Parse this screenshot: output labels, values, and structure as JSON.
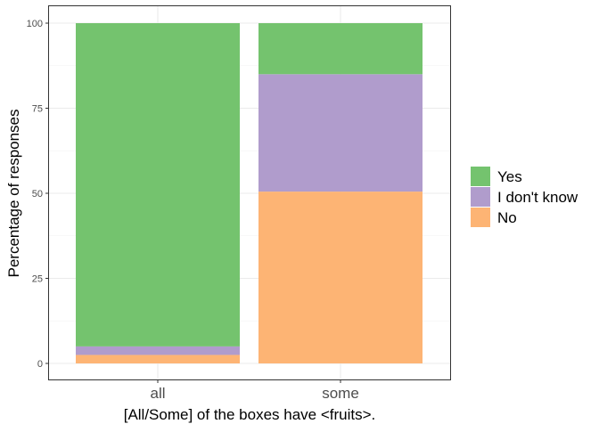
{
  "chart_data": {
    "type": "bar",
    "stacked": true,
    "categories": [
      "all",
      "some"
    ],
    "series": [
      {
        "name": "No",
        "color": "#fdb474",
        "values": [
          2.5,
          50.5
        ]
      },
      {
        "name": "I don't know",
        "color": "#b09ccc",
        "values": [
          2.5,
          34.5
        ]
      },
      {
        "name": "Yes",
        "color": "#74c36e",
        "values": [
          95,
          15
        ]
      }
    ],
    "legend_order": [
      "Yes",
      "I don't know",
      "No"
    ],
    "xlabel": "[All/Some] of the boxes have <fruits>.",
    "ylabel": "Percentage of responses",
    "ylim": [
      0,
      100
    ],
    "yticks": [
      0,
      25,
      50,
      75,
      100
    ],
    "grid": true,
    "legend_position": "right"
  }
}
